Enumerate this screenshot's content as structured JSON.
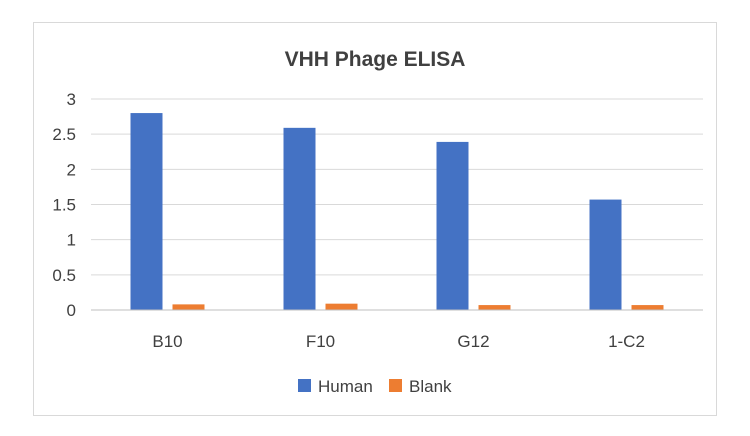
{
  "chart_data": {
    "type": "bar",
    "title": "VHH Phage ELISA",
    "xlabel": "",
    "ylabel": "",
    "categories": [
      "B10",
      "F10",
      "G12",
      "1-C2"
    ],
    "series": [
      {
        "name": "Human",
        "color": "#4472C4",
        "values": [
          2.8,
          2.59,
          2.39,
          1.57
        ]
      },
      {
        "name": "Blank",
        "color": "#ED7D31",
        "values": [
          0.08,
          0.09,
          0.07,
          0.07
        ]
      }
    ],
    "ylim": [
      0,
      3
    ],
    "yticks": [
      "0",
      "0.5",
      "1",
      "1.5",
      "2",
      "2.5",
      "3"
    ],
    "ytick_values": [
      0,
      0.5,
      1,
      1.5,
      2,
      2.5,
      3
    ],
    "grid": true,
    "legend_position": "bottom"
  }
}
